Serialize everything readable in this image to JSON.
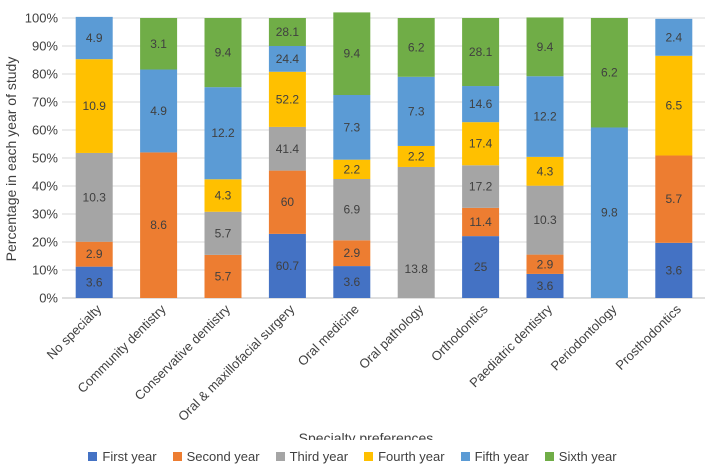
{
  "chart_data": {
    "type": "bar",
    "stacked": true,
    "title": "",
    "xlabel": "Specialty preferences",
    "ylabel": "Percentage in each year of study",
    "ylim": [
      0,
      100
    ],
    "yticks": [
      "0%",
      "10%",
      "20%",
      "30%",
      "40%",
      "50%",
      "60%",
      "70%",
      "80%",
      "90%",
      "100%"
    ],
    "grid": true,
    "legend_position": "bottom",
    "categories": [
      "No specialty",
      "Community dentistry",
      "Conservative dentistry",
      "Oral & maxillofacial surgery",
      "Oral medicine",
      "Oral pathology",
      "Orthodontics",
      "Paediatric dentistry",
      "Periodontology",
      "Prosthodontics"
    ],
    "series": [
      {
        "name": "First year",
        "color": "#4472C4",
        "shares": [
          11.2,
          0,
          0,
          22.9,
          11.4,
          0,
          22.1,
          8.6,
          0,
          19.7
        ],
        "labels": [
          "3.6",
          "",
          "",
          "60.7",
          "3.6",
          "",
          "25",
          "3.6",
          "",
          "3.6"
        ]
      },
      {
        "name": "Second year",
        "color": "#ED7D31",
        "shares": [
          8.9,
          52.0,
          15.4,
          22.6,
          9.2,
          0,
          10.1,
          6.9,
          0,
          31.2
        ],
        "labels": [
          "2.9",
          "8.6",
          "5.7",
          "60",
          "2.9",
          "",
          "11.4",
          "2.9",
          "",
          "5.7"
        ]
      },
      {
        "name": "Third year",
        "color": "#A5A5A5",
        "shares": [
          31.7,
          0,
          15.4,
          15.6,
          21.9,
          46.8,
          15.2,
          24.6,
          0,
          0
        ],
        "labels": [
          "10.3",
          "",
          "5.7",
          "41.4",
          "6.9",
          "",
          "17.2",
          "10.3",
          "",
          ""
        ],
        "extra_label": {
          "index": 5,
          "text": "13.8"
        }
      },
      {
        "name": "Fourth year",
        "color": "#FFC000",
        "shares": [
          33.5,
          0,
          11.6,
          19.7,
          6.9,
          7.5,
          15.4,
          10.3,
          0,
          35.6
        ],
        "labels": [
          "10.9",
          "",
          "4.3",
          "52.2",
          "2.2",
          "2.2",
          "17.4",
          "4.3",
          "",
          "6.5"
        ]
      },
      {
        "name": "Fifth year",
        "color": "#5B9BD5",
        "shares": [
          15.1,
          29.6,
          32.9,
          9.2,
          23.1,
          24.7,
          12.9,
          28.8,
          60.9,
          13.2
        ],
        "labels": [
          "4.9",
          "4.9",
          "12.2",
          "24.4",
          "7.3",
          "7.3",
          "14.6",
          "12.2",
          "9.8",
          "2.4"
        ]
      },
      {
        "name": "Sixth year",
        "color": "#70AD47",
        "shares": [
          0,
          18.4,
          24.7,
          10.0,
          29.5,
          21.0,
          24.3,
          21.0,
          39.1,
          0
        ],
        "labels": [
          "",
          "3.1",
          "9.4",
          "28.1",
          "9.4",
          "6.2",
          "28.1",
          "9.4",
          "6.2",
          ""
        ]
      }
    ]
  }
}
